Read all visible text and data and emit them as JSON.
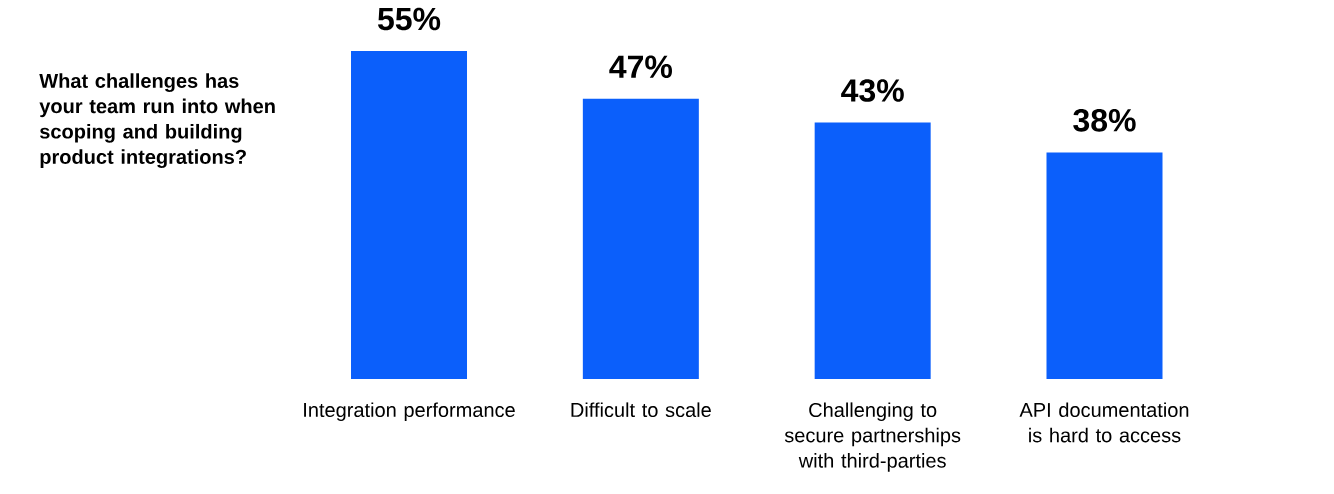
{
  "chart_data": {
    "type": "bar",
    "title": "What challenges has your team run into when scoping and building product integrations?",
    "categories": [
      "Integration performance",
      "Difficult to scale",
      "Challenging to secure partnerships with third-parties",
      "API documentation is hard to access"
    ],
    "values": [
      55,
      47,
      43,
      38
    ],
    "value_labels": [
      "55%",
      "47%",
      "43%",
      "38%"
    ],
    "color": "#0b5ffb"
  }
}
